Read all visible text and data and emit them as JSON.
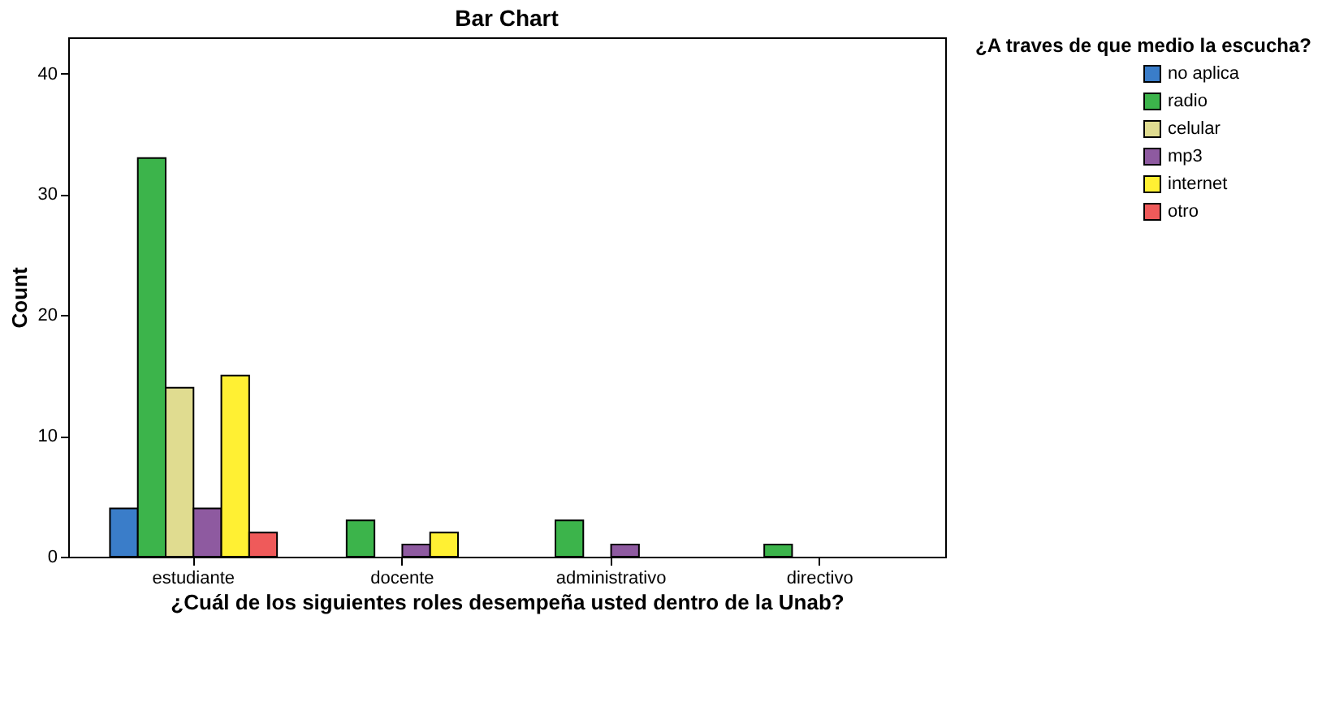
{
  "chart_data": {
    "type": "bar",
    "title": "Bar Chart",
    "xlabel": "¿Cuál de los siguientes roles desempeña usted dentro de la Unab?",
    "ylabel": "Count",
    "legend_title": "¿A traves de que medio la escucha?",
    "categories": [
      "estudiante",
      "docente",
      "administrativo",
      "directivo"
    ],
    "series": [
      {
        "name": "no aplica",
        "color": "#3a7dc9",
        "values": [
          4,
          null,
          null,
          null
        ]
      },
      {
        "name": "radio",
        "color": "#3cb44b",
        "values": [
          33,
          3,
          3,
          1
        ]
      },
      {
        "name": "celular",
        "color": "#e0dc90",
        "values": [
          14,
          null,
          null,
          null
        ]
      },
      {
        "name": "mp3",
        "color": "#8e5aa0",
        "values": [
          4,
          1,
          1,
          null
        ]
      },
      {
        "name": "internet",
        "color": "#fff033",
        "values": [
          15,
          2,
          null,
          null
        ]
      },
      {
        "name": "otro",
        "color": "#ef5a5a",
        "values": [
          2,
          null,
          null,
          null
        ]
      }
    ],
    "ylim": [
      0,
      43
    ],
    "yticks": [
      0,
      10,
      20,
      30,
      40
    ],
    "grid": false,
    "legend": "top right"
  }
}
